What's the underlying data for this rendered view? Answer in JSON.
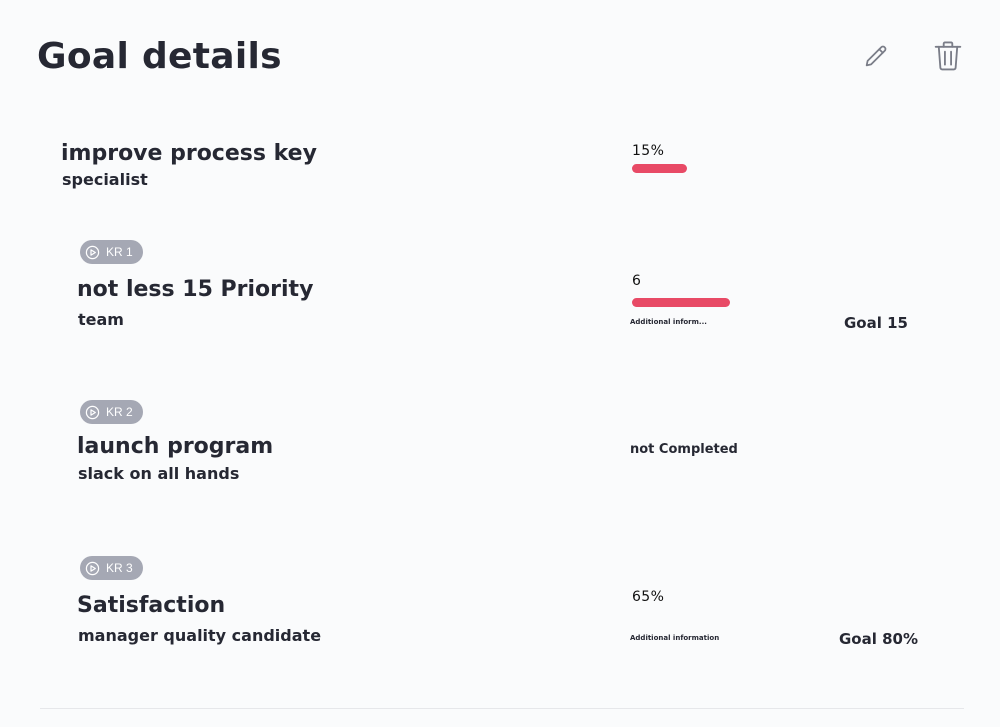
{
  "header": {
    "title": "Goal details",
    "edit_icon": "pencil-icon",
    "delete_icon": "trash-icon"
  },
  "objective": {
    "title": "improve process key",
    "subtitle": "specialist",
    "progress_label": "15%",
    "progress_percent": 15,
    "bar_color": "#e84a66"
  },
  "key_results": [
    {
      "badge": "KR 1",
      "badge_icon": "play-circle-icon",
      "title": "not less 15 Priority",
      "subtitle": "team",
      "value": "6",
      "current": 6,
      "target": 15,
      "info": "Additional inform...",
      "goal": "Goal 15"
    },
    {
      "badge": "KR 2",
      "badge_icon": "play-circle-icon",
      "title": "launch program",
      "subtitle": "slack on all hands",
      "status": "not Completed"
    },
    {
      "badge": "KR 3",
      "badge_icon": "play-circle-icon",
      "title": "Satisfaction",
      "subtitle": "manager quality candidate",
      "value": "65%",
      "info": "Additional information",
      "goal": "Goal 80%"
    }
  ],
  "colors": {
    "accent": "#e84a66",
    "badge": "#a5a8b4",
    "text": "#262833"
  }
}
